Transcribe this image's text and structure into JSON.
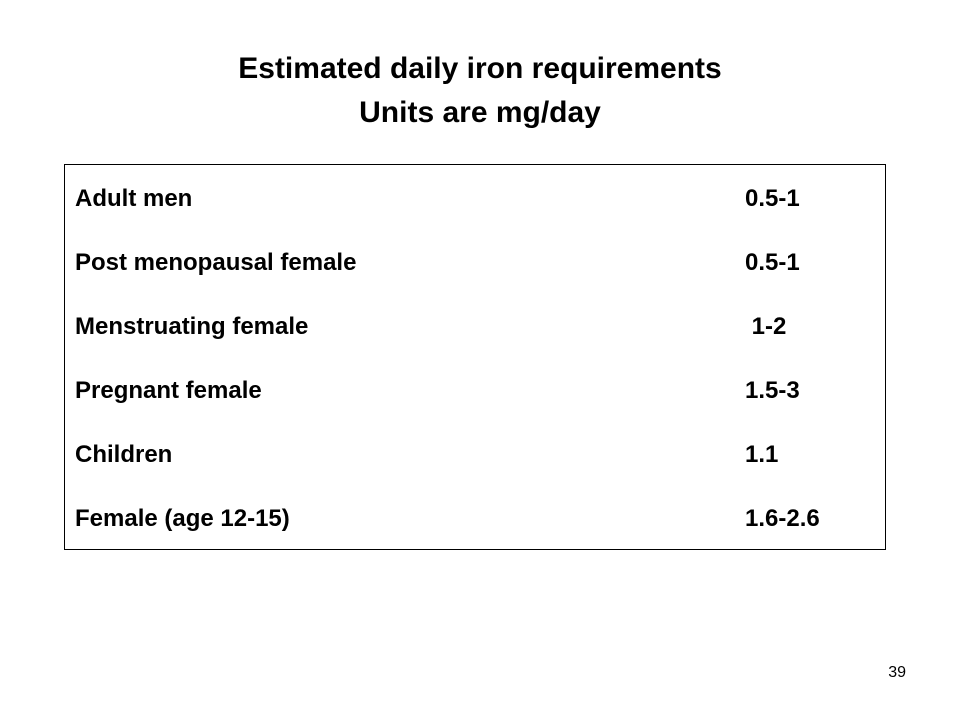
{
  "header": {
    "title": "Estimated daily iron requirements",
    "subtitle": "Units are mg/day"
  },
  "table": {
    "rows": [
      [
        "Adult men",
        "0.5-1"
      ],
      [
        "Post menopausal female",
        "0.5-1"
      ],
      [
        "Menstruating female",
        " 1-2"
      ],
      [
        "Pregnant female",
        "1.5-3"
      ],
      [
        "Children",
        "1.1"
      ],
      [
        "Female (age 12-15)",
        "1.6-2.6"
      ]
    ]
  },
  "page_number": "39"
}
